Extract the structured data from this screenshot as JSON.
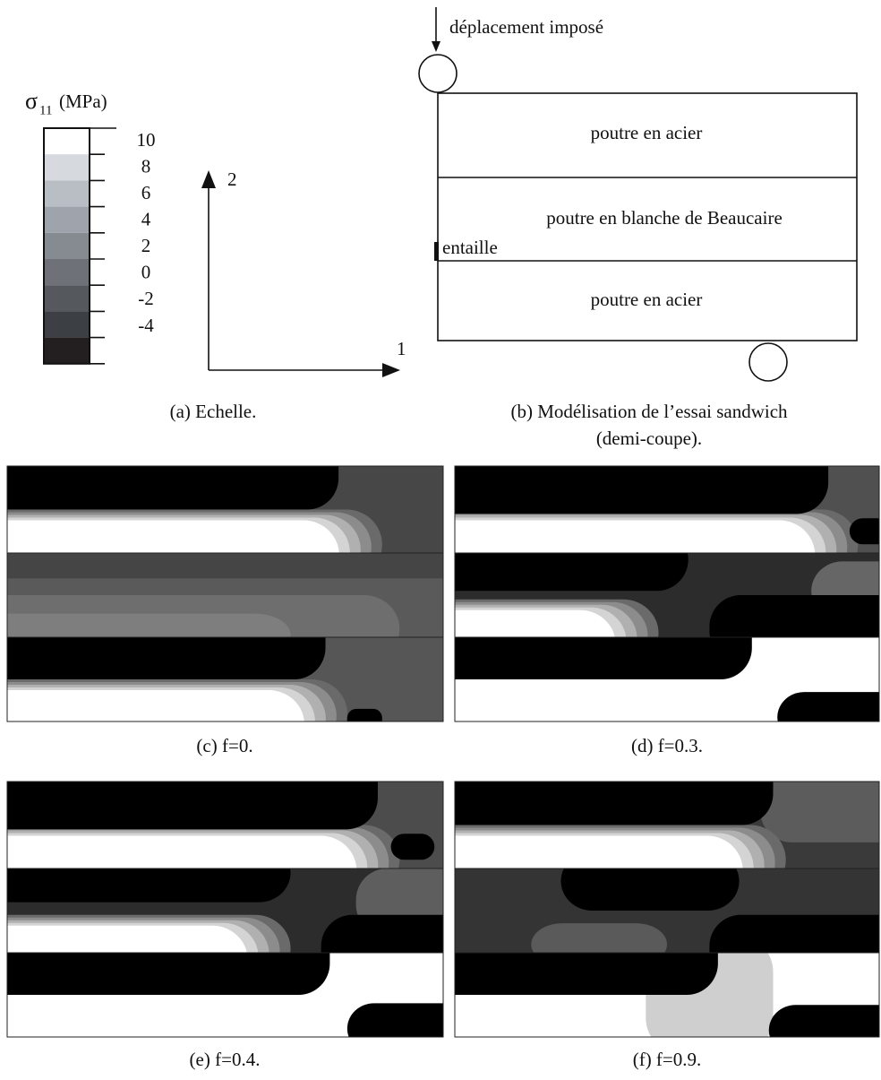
{
  "scale": {
    "symbol": "σ",
    "subscript": "11",
    "unit": "(MPa)",
    "ticks": [
      10,
      8,
      6,
      4,
      2,
      0,
      -2,
      -4
    ]
  },
  "axes": {
    "vertical": "2",
    "horizontal": "1"
  },
  "model": {
    "load": "déplacement imposé",
    "layers": [
      "poutre en acier",
      "poutre en blanche de Beaucaire",
      "poutre en acier"
    ],
    "notch": "entaille"
  },
  "captions": {
    "a": "(a) Echelle.",
    "b": [
      "(b) Modélisation de l’essai sandwich",
      "(demi-coupe)."
    ],
    "c": "(c) f=0.",
    "d": "(d) f=0.3.",
    "e": "(e) f=0.4.",
    "f": "(f) f=0.9."
  }
}
